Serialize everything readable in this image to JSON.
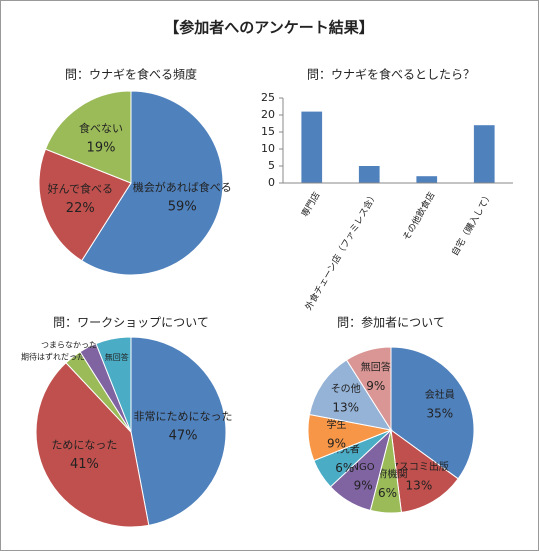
{
  "title": "【参加者へのアンケート結果】",
  "chart_data": [
    {
      "type": "pie",
      "title": "問：ウナギを食べる頻度",
      "categories": [
        "機会があれば食べる",
        "好んで食べる",
        "食べない"
      ],
      "values": [
        59,
        22,
        19
      ],
      "value_labels": [
        "59%",
        "22%",
        "19%"
      ],
      "colors": [
        "#4f81bd",
        "#c0504d",
        "#9bbb59"
      ]
    },
    {
      "type": "bar",
      "title": "問：ウナギを食べるとしたら？",
      "categories": [
        "専門店",
        "外食チェーン店（ファミレス含）",
        "その他飲食店",
        "自宅（購入して）"
      ],
      "values": [
        21,
        5,
        2,
        17
      ],
      "color": "#4f81bd",
      "ylim": [
        0,
        25
      ],
      "yticks": [
        0,
        5,
        10,
        15,
        20,
        25
      ],
      "grid": false
    },
    {
      "type": "pie",
      "title": "問：ワークショップについて",
      "categories": [
        "非常にためになった",
        "ためになった",
        "期待はずれだった",
        "つまらなかった",
        "無回答"
      ],
      "values": [
        47,
        41,
        3,
        3,
        6
      ],
      "value_labels": [
        "47%",
        "41%",
        null,
        null,
        null
      ],
      "colors": [
        "#4f81bd",
        "#c0504d",
        "#9bbb59",
        "#8064a2",
        "#4bacc6"
      ]
    },
    {
      "type": "pie",
      "title": "問：参加者について",
      "categories": [
        "会社員",
        "マスコミ出版",
        "政府機関",
        "NGO",
        "研究者",
        "学生",
        "その他",
        "無回答"
      ],
      "values": [
        35,
        13,
        6,
        9,
        6,
        9,
        13,
        9
      ],
      "value_labels": [
        "35%",
        "13%",
        "6%",
        "9%",
        "6%",
        "9%",
        "13%",
        "9%"
      ],
      "colors": [
        "#4f81bd",
        "#c0504d",
        "#9bbb59",
        "#8064a2",
        "#4bacc6",
        "#f79646",
        "#95b3d7",
        "#d99694"
      ]
    }
  ]
}
